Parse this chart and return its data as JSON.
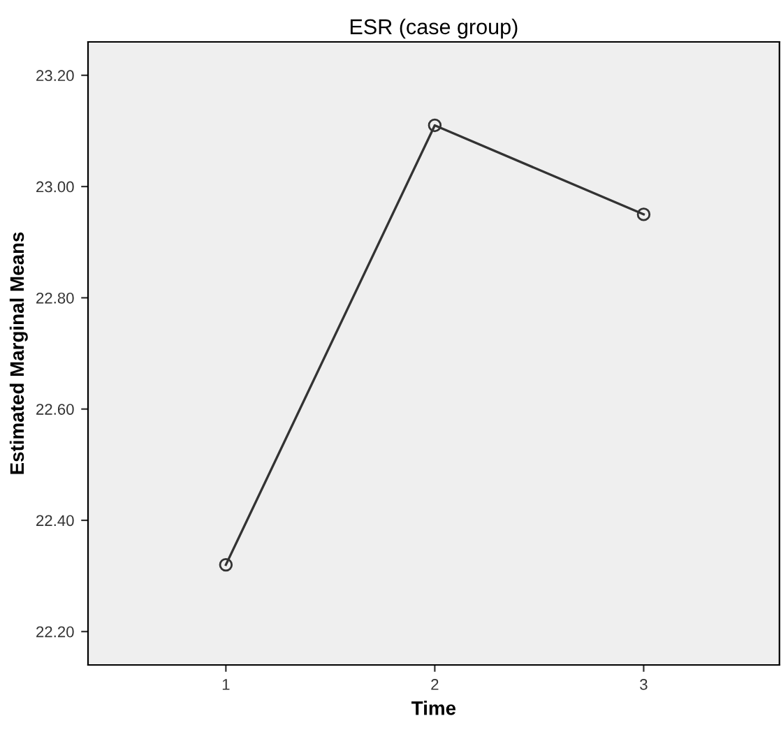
{
  "chart_data": {
    "type": "line",
    "title": "ESR (case group)",
    "xlabel": "Time",
    "ylabel": "Estimated Marginal Means",
    "categories": [
      "1",
      "2",
      "3"
    ],
    "series": [
      {
        "color": "#333333",
        "values": [
          22.32,
          23.11,
          22.95
        ]
      }
    ],
    "ylim": [
      22.14,
      23.26
    ],
    "yticks": [
      {
        "value": 22.2,
        "label": "22.20"
      },
      {
        "value": 22.4,
        "label": "22.40"
      },
      {
        "value": 22.6,
        "label": "22.60"
      },
      {
        "value": 22.8,
        "label": "22.80"
      },
      {
        "value": 23.0,
        "label": "23.00"
      },
      {
        "value": 23.2,
        "label": "23.20"
      }
    ],
    "marker": "circle",
    "line_style": "solid",
    "grid": false,
    "legend": false
  }
}
